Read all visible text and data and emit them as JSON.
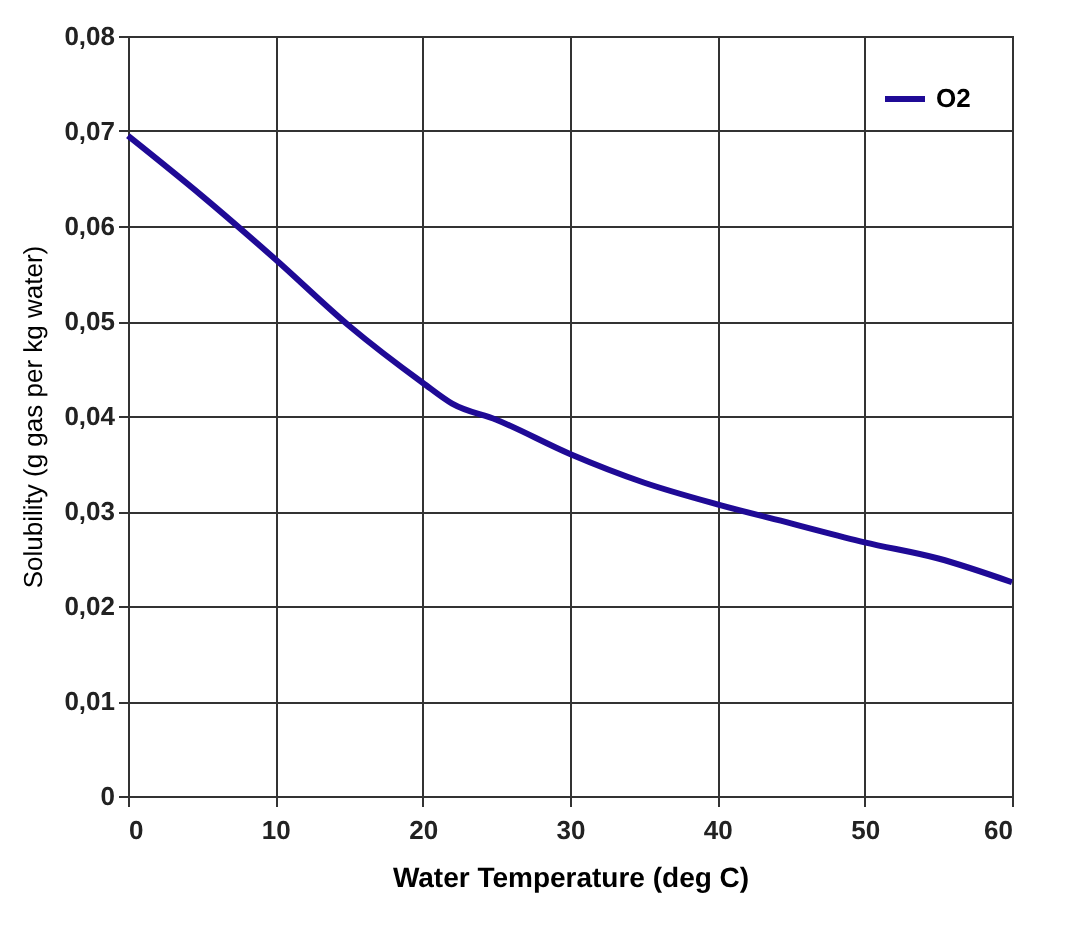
{
  "chart_data": {
    "type": "line",
    "xlabel": "Water Temperature (deg C)",
    "ylabel": "Solubility (g gas per kg water)",
    "x": [
      0,
      5,
      10,
      15,
      20,
      22,
      25,
      30,
      35,
      40,
      45,
      50,
      55,
      60
    ],
    "series": [
      {
        "name": "O2",
        "color": "#1f0a96",
        "values": [
          0.0695,
          0.0632,
          0.0565,
          0.0495,
          0.0435,
          0.0413,
          0.0396,
          0.036,
          0.033,
          0.0307,
          0.0287,
          0.0267,
          0.025,
          0.0225
        ]
      }
    ],
    "xlim": [
      0,
      60
    ],
    "xticks": [
      0,
      10,
      20,
      30,
      40,
      50,
      60
    ],
    "ylim": [
      0,
      0.08
    ],
    "yticks": [
      0,
      {
        "value": 0.01,
        "label": "0,01"
      },
      {
        "value": 0.02,
        "label": "0,02"
      },
      {
        "value": 0.03,
        "label": "0,03"
      },
      {
        "value": 0.04,
        "label": "0,04"
      },
      {
        "value": 0.05,
        "label": "0,05"
      },
      {
        "value": 0.06,
        "label": "0,06"
      },
      {
        "value": 0.07,
        "label": "0,07"
      },
      {
        "value": 0.08,
        "label": "0,08"
      }
    ],
    "grid": true,
    "legend": "top right",
    "marker": "none",
    "line_style": "solid"
  }
}
